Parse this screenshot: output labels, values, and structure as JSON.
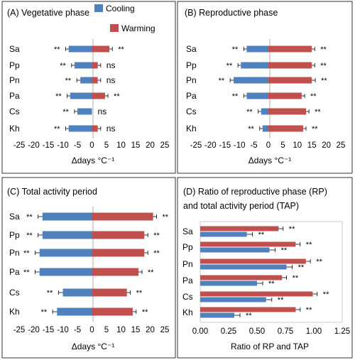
{
  "legend": {
    "cooling_label": "Cooling",
    "warming_label": "Warming",
    "cooling_color": "#4F81BD",
    "warming_color": "#C0504D"
  },
  "chart_data": [
    {
      "type": "bar",
      "orientation": "horizontal",
      "title": "(A) Vegetative phase",
      "xlabel": "Δdays °C⁻¹",
      "xlim": [
        -25,
        25
      ],
      "xticks": [
        "-25",
        "-20",
        "-15",
        "-10",
        "-5",
        "0",
        "5",
        "10",
        "15",
        "20",
        "25"
      ],
      "legend_position": "top-right",
      "categories": [
        "Sa",
        "Pp",
        "Pn",
        "Pa",
        "Cs",
        "Kh"
      ],
      "series": [
        {
          "name": "Cooling",
          "values": [
            -8,
            -6,
            -4,
            -7.5,
            -5,
            -8
          ],
          "errors": [
            1.0,
            1.0,
            1.2,
            1.0,
            1.0,
            1.0
          ],
          "labels": [
            "**",
            "**",
            "**",
            "**",
            "**",
            "**"
          ]
        },
        {
          "name": "Warming",
          "values": [
            6,
            2,
            2,
            4.5,
            0,
            2
          ],
          "errors": [
            1.0,
            1.0,
            1.0,
            1.0,
            0,
            1.0
          ],
          "labels": [
            "**",
            "ns",
            "ns",
            "**",
            "ns",
            "ns"
          ]
        }
      ]
    },
    {
      "type": "bar",
      "orientation": "horizontal",
      "title": "(B) Reproductive phase",
      "xlabel": "Δdays °C⁻¹",
      "xlim": [
        -25,
        25
      ],
      "xticks": [
        "-25",
        "-20",
        "-15",
        "-10",
        "-5",
        "0",
        "5",
        "10",
        "15",
        "20",
        "25"
      ],
      "categories": [
        "Sa",
        "Pp",
        "Pn",
        "Pa",
        "Cs",
        "Kh"
      ],
      "series": [
        {
          "name": "Cooling",
          "values": [
            -7.5,
            -9.5,
            -12,
            -7.5,
            -2.5,
            -2
          ],
          "errors": [
            1.0,
            1.0,
            1.2,
            1.0,
            1.0,
            1.0
          ],
          "labels": [
            "**",
            "**",
            "**",
            "**",
            "**",
            "**"
          ]
        },
        {
          "name": "Warming",
          "values": [
            15,
            15,
            15,
            11.5,
            13,
            12
          ],
          "errors": [
            1.0,
            1.0,
            1.2,
            1.0,
            1.0,
            1.0
          ],
          "labels": [
            "**",
            "**",
            "**",
            "**",
            "**",
            "**"
          ]
        }
      ]
    },
    {
      "type": "bar",
      "orientation": "horizontal",
      "title": "(C) Total activity period",
      "xlabel": "Δdays °C⁻¹",
      "xlim": [
        -25,
        25
      ],
      "xticks": [
        "-25",
        "-20",
        "-15",
        "-10",
        "-5",
        "0",
        "5",
        "10",
        "15",
        "20",
        "25"
      ],
      "categories": [
        "Sa",
        "Pp",
        "Pn",
        "Pa",
        "Cs",
        "Kh"
      ],
      "series": [
        {
          "name": "Cooling",
          "values": [
            -17,
            -17,
            -18,
            -18,
            -10,
            -12
          ],
          "errors": [
            1.5,
            1.5,
            1.5,
            1.5,
            1.5,
            1.5
          ],
          "labels": [
            "**",
            "**",
            "**",
            "**",
            "**",
            "**"
          ]
        },
        {
          "name": "Warming",
          "values": [
            21,
            18,
            18,
            16,
            12,
            14
          ],
          "errors": [
            1.2,
            1.2,
            1.2,
            1.2,
            1.2,
            1.2
          ],
          "labels": [
            "**",
            "**",
            "**",
            "**",
            "**",
            "**"
          ]
        }
      ]
    },
    {
      "type": "bar",
      "orientation": "horizontal",
      "title": "(D) Ratio of reproductive phase (RP) and total activity period (TAP)",
      "title_lines": [
        "(D) Ratio of reproductive phase (RP)",
        "and total activity period (TAP)"
      ],
      "xlabel": "Ratio of RP and TAP",
      "xlim": [
        0,
        1.25
      ],
      "xticks": [
        "0.00",
        "0.25",
        "0.50",
        "0.75",
        "1.00",
        "1.25"
      ],
      "categories": [
        "Sa",
        "Pp",
        "Pn",
        "Pa",
        "Cs",
        "Kh"
      ],
      "series": [
        {
          "name": "Warming",
          "values": [
            0.69,
            0.84,
            0.93,
            0.72,
            0.99,
            0.84
          ],
          "errors": [
            0.04,
            0.04,
            0.04,
            0.04,
            0.04,
            0.04
          ],
          "labels": [
            "**",
            "**",
            "**",
            "**",
            "**",
            "**"
          ]
        },
        {
          "name": "Cooling",
          "values": [
            0.41,
            0.61,
            0.76,
            0.5,
            0.58,
            0.3
          ],
          "errors": [
            0.05,
            0.05,
            0.05,
            0.05,
            0.05,
            0.05
          ],
          "labels": [
            "**",
            "**",
            "**",
            "**",
            "**",
            "**"
          ]
        }
      ]
    }
  ]
}
